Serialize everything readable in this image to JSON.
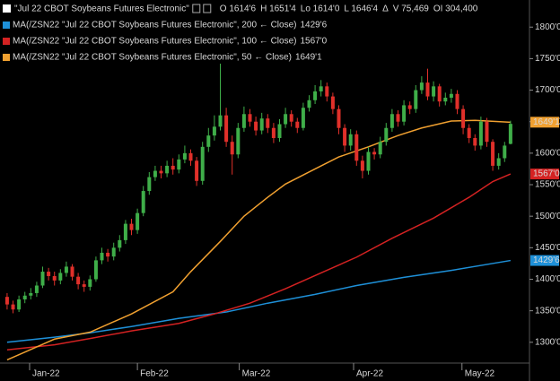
{
  "chart_data": {
    "type": "candlestick",
    "title": "\"Jul 22 CBOT Soybeans Futures Electronic\"",
    "quote": [
      "O 1614'6",
      "H 1651'4",
      "Lo 1614'0",
      "L 1646'4",
      "Δ",
      "V 75,469",
      "OI 304,400"
    ],
    "up_color": "#3fae49",
    "down_color": "#e0302a",
    "open": [
      1372,
      1360,
      1352,
      1368,
      1374,
      1378,
      1390,
      1412,
      1405,
      1398,
      1410,
      1420,
      1404,
      1392,
      1388,
      1400,
      1430,
      1442,
      1436,
      1450,
      1462,
      1488,
      1478,
      1505,
      1540,
      1562,
      1572,
      1568,
      1580,
      1574,
      1590,
      1600,
      1588,
      1556,
      1610,
      1628,
      1642,
      1660,
      1618,
      1598,
      1640,
      1662,
      1650,
      1636,
      1655,
      1640,
      1624,
      1646,
      1662,
      1650,
      1640,
      1672,
      1684,
      1698,
      1706,
      1690,
      1670,
      1640,
      1612,
      1630,
      1588,
      1572,
      1602,
      1598,
      1618,
      1640,
      1662,
      1650,
      1676,
      1670,
      1700,
      1712,
      1690,
      1706,
      1682,
      1688,
      1694,
      1670,
      1640,
      1624,
      1612,
      1650,
      1618,
      1580,
      1592,
      1614.75
    ],
    "high": [
      1378,
      1366,
      1374,
      1380,
      1386,
      1396,
      1420,
      1418,
      1412,
      1416,
      1428,
      1424,
      1410,
      1398,
      1406,
      1436,
      1450,
      1448,
      1458,
      1470,
      1494,
      1496,
      1512,
      1548,
      1570,
      1580,
      1580,
      1588,
      1592,
      1598,
      1612,
      1606,
      1594,
      1618,
      1640,
      1660,
      1742,
      1672,
      1628,
      1648,
      1674,
      1670,
      1658,
      1664,
      1662,
      1648,
      1654,
      1672,
      1668,
      1656,
      1680,
      1692,
      1708,
      1716,
      1712,
      1696,
      1676,
      1646,
      1638,
      1636,
      1596,
      1610,
      1608,
      1626,
      1648,
      1670,
      1668,
      1684,
      1682,
      1708,
      1722,
      1734,
      1714,
      1710,
      1696,
      1702,
      1700,
      1676,
      1646,
      1630,
      1658,
      1656,
      1622,
      1600,
      1618,
      1651.5
    ],
    "low": [
      1352,
      1346,
      1348,
      1362,
      1368,
      1372,
      1386,
      1398,
      1390,
      1392,
      1404,
      1398,
      1384,
      1380,
      1382,
      1396,
      1424,
      1428,
      1430,
      1444,
      1456,
      1470,
      1472,
      1500,
      1534,
      1556,
      1560,
      1562,
      1566,
      1568,
      1584,
      1580,
      1548,
      1550,
      1602,
      1620,
      1636,
      1610,
      1566,
      1592,
      1634,
      1642,
      1628,
      1630,
      1632,
      1616,
      1618,
      1640,
      1642,
      1632,
      1636,
      1666,
      1678,
      1690,
      1682,
      1662,
      1630,
      1602,
      1604,
      1580,
      1560,
      1566,
      1590,
      1592,
      1612,
      1634,
      1642,
      1644,
      1662,
      1664,
      1694,
      1684,
      1682,
      1674,
      1676,
      1680,
      1662,
      1630,
      1616,
      1604,
      1606,
      1610,
      1572,
      1574,
      1586,
      1614
    ],
    "close": [
      1360,
      1352,
      1368,
      1374,
      1378,
      1390,
      1412,
      1405,
      1398,
      1410,
      1420,
      1404,
      1392,
      1388,
      1400,
      1430,
      1442,
      1436,
      1450,
      1462,
      1488,
      1478,
      1505,
      1540,
      1562,
      1572,
      1568,
      1580,
      1574,
      1590,
      1600,
      1588,
      1556,
      1610,
      1628,
      1642,
      1660,
      1618,
      1598,
      1640,
      1662,
      1650,
      1636,
      1655,
      1640,
      1624,
      1646,
      1662,
      1650,
      1640,
      1672,
      1684,
      1698,
      1706,
      1690,
      1670,
      1640,
      1612,
      1630,
      1588,
      1572,
      1602,
      1598,
      1618,
      1640,
      1662,
      1650,
      1676,
      1670,
      1700,
      1712,
      1690,
      1706,
      1682,
      1688,
      1694,
      1670,
      1640,
      1624,
      1612,
      1650,
      1618,
      1580,
      1592,
      1612,
      1646.5
    ],
    "series": [
      {
        "name": "MA(/ZSN22 \"Jul 22 CBOT Soybeans Futures Electronic\", 200 ← Close)",
        "color": "#1e90d8",
        "type": "line",
        "x": [
          0,
          8,
          14,
          21,
          29,
          37,
          44,
          52,
          59,
          67,
          75,
          85
        ],
        "values": [
          1300,
          1308,
          1315,
          1325,
          1338,
          1348,
          1362,
          1376,
          1390,
          1403,
          1414,
          1429.75
        ],
        "value_labels": [
          null,
          null,
          null,
          null,
          null,
          null,
          null,
          null,
          null,
          null,
          null,
          "1429'6"
        ]
      },
      {
        "name": "MA(/ZSN22 \"Jul 22 CBOT Soybeans Futures Electronic\", 100 ← Close)",
        "color": "#d42222",
        "type": "line",
        "x": [
          0,
          8,
          14,
          21,
          29,
          35,
          41,
          47,
          53,
          59,
          65,
          72,
          78,
          82,
          85
        ],
        "values": [
          1288,
          1296,
          1306,
          1318,
          1330,
          1345,
          1362,
          1385,
          1410,
          1435,
          1465,
          1497,
          1530,
          1555,
          1567
        ],
        "value_labels": [
          null,
          null,
          null,
          null,
          null,
          null,
          null,
          null,
          null,
          null,
          null,
          null,
          null,
          null,
          "1567'0"
        ]
      },
      {
        "name": "MA(/ZSN22 \"Jul 22 CBOT Soybeans Futures Electronic\", 50 ← Close)",
        "color": "#f0a030",
        "type": "line",
        "x": [
          0,
          8,
          14,
          21,
          28,
          31,
          36,
          40,
          44,
          47,
          52,
          56,
          61,
          66,
          70,
          75,
          79,
          85
        ],
        "values": [
          1272,
          1305,
          1316,
          1345,
          1380,
          1412,
          1460,
          1500,
          1530,
          1551,
          1575,
          1594,
          1610,
          1628,
          1640,
          1651,
          1652,
          1649.125
        ],
        "value_labels": [
          null,
          null,
          null,
          null,
          null,
          null,
          null,
          null,
          null,
          null,
          null,
          null,
          null,
          null,
          null,
          null,
          null,
          "1649'1"
        ]
      }
    ],
    "xlim": [
      -1.2,
      88.2
    ],
    "xticks": [
      {
        "value": 3.8,
        "label": "Jan-22"
      },
      {
        "value": 22,
        "label": "Feb-22"
      },
      {
        "value": 39.2,
        "label": "Mar-22"
      },
      {
        "value": 58.5,
        "label": "Apr-22"
      },
      {
        "value": 76.8,
        "label": "May-22"
      }
    ],
    "ylim": [
      1267,
      1843
    ],
    "yticks": [
      {
        "value": 1300,
        "label": "1300'0"
      },
      {
        "value": 1350,
        "label": "1350'0"
      },
      {
        "value": 1400,
        "label": "1400'0"
      },
      {
        "value": 1450,
        "label": "1450'0"
      },
      {
        "value": 1500,
        "label": "1500'0"
      },
      {
        "value": 1550,
        "label": "1550'0"
      },
      {
        "value": 1600,
        "label": "1600'0"
      },
      {
        "value": 1650,
        "label": "1650'0"
      },
      {
        "value": 1700,
        "label": "1700'0"
      },
      {
        "value": 1750,
        "label": "1750'0"
      },
      {
        "value": 1800,
        "label": "1800'0"
      }
    ]
  }
}
